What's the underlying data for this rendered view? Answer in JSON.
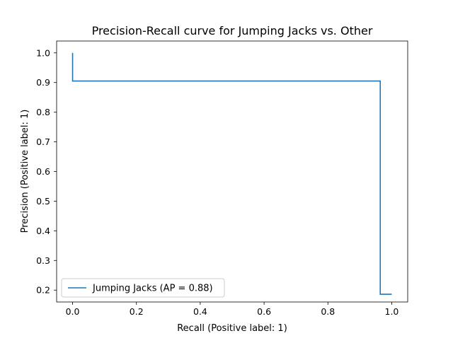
{
  "chart_data": {
    "type": "line",
    "title": "Precision-Recall curve for Jumping Jacks vs. Other",
    "xlabel": "Recall (Positive label: 1)",
    "ylabel": "Precision (Positive label: 1)",
    "xlim": [
      -0.05,
      1.05
    ],
    "ylim": [
      0.16,
      1.04
    ],
    "x_ticks": [
      "0.0",
      "0.2",
      "0.4",
      "0.6",
      "0.8",
      "1.0"
    ],
    "y_ticks": [
      "0.2",
      "0.3",
      "0.4",
      "0.5",
      "0.6",
      "0.7",
      "0.8",
      "0.9",
      "1.0"
    ],
    "grid": false,
    "legend_position": "lower-left",
    "series": [
      {
        "name": "Jumping Jacks (AP = 0.88)",
        "color": "#1f77b4",
        "drawstyle": "steps-post",
        "points": [
          {
            "x": 0.0,
            "y": 1.0
          },
          {
            "x": 0.0,
            "y": 0.905
          },
          {
            "x": 0.964,
            "y": 0.905
          },
          {
            "x": 0.964,
            "y": 0.186
          },
          {
            "x": 1.0,
            "y": 0.186
          }
        ]
      }
    ]
  }
}
